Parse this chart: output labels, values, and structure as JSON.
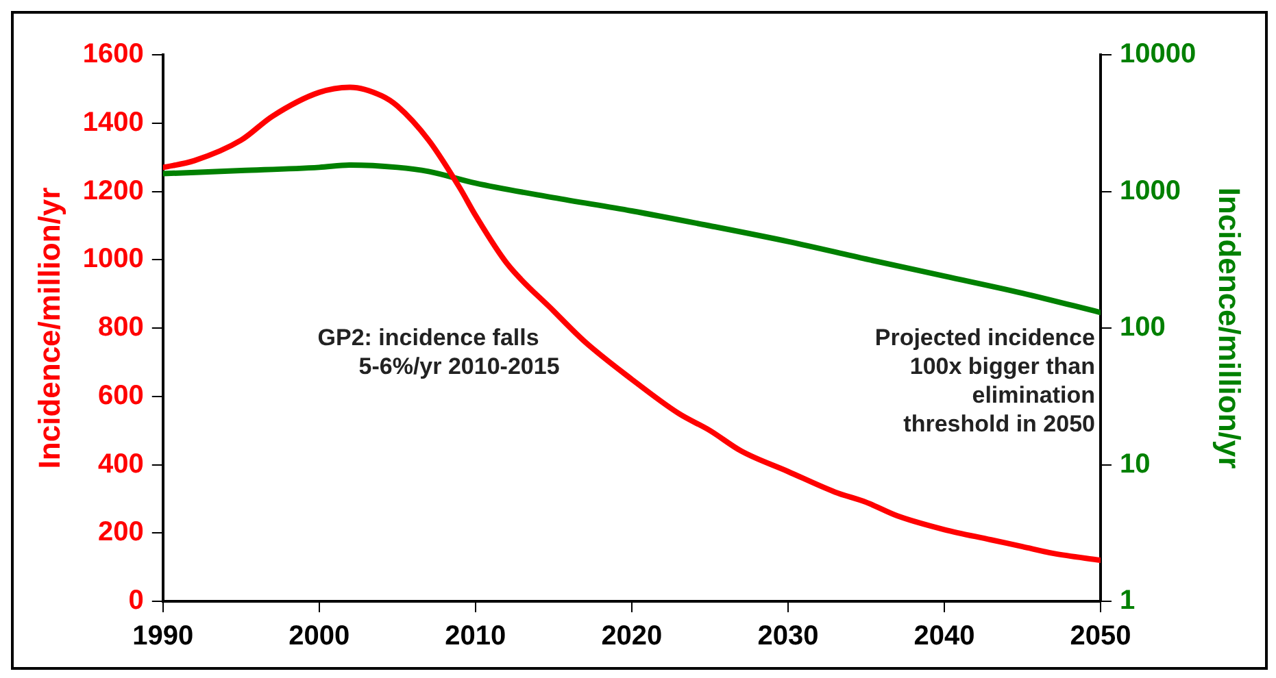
{
  "chart_data": {
    "type": "line",
    "x": [
      1990,
      1992,
      1995,
      1997,
      2000,
      2002,
      2004,
      2005,
      2007,
      2009,
      2010,
      2012,
      2015,
      2017,
      2020,
      2023,
      2025,
      2027,
      2030,
      2033,
      2035,
      2037,
      2040,
      2043,
      2045,
      2047,
      2050
    ],
    "series": [
      {
        "color": "#ff0000",
        "values": [
          1270,
          1290,
          1350,
          1420,
          1490,
          1505,
          1480,
          1450,
          1350,
          1210,
          1130,
          990,
          850,
          760,
          650,
          550,
          500,
          440,
          380,
          320,
          290,
          250,
          210,
          180,
          160,
          140,
          120
        ]
      },
      {
        "color": "#008000",
        "axis": "y2",
        "x": [
          1990,
          1995,
          2000,
          2002,
          2005,
          2007,
          2010,
          2015,
          2020,
          2025,
          2030,
          2035,
          2040,
          2045,
          2050
        ],
        "values": [
          1350,
          1420,
          1500,
          1560,
          1500,
          1400,
          1150,
          900,
          720,
          560,
          430,
          320,
          240,
          180,
          130
        ]
      }
    ],
    "xlim": [
      1990,
      2050
    ],
    "xticks": [
      1990,
      2000,
      2010,
      2020,
      2030,
      2040,
      2050
    ],
    "ylim": [
      0,
      1600
    ],
    "yticks": [
      0,
      200,
      400,
      600,
      800,
      1000,
      1200,
      1400,
      1600
    ],
    "y2lim": [
      1,
      10000
    ],
    "y2ticks": [
      1,
      10,
      100,
      1000,
      10000
    ],
    "log": "y2",
    "ylabel": "Incidence/million/yr",
    "y2label": "Incidence/million/yr",
    "annotations": [
      "GP2: incidence falls\n5-6%/yr 2010-2015",
      "Projected incidence\n100x bigger than\nelimination\nthreshold in 2050"
    ],
    "grid": false,
    "legend": false,
    "marker": "none",
    "line_style": "solid"
  }
}
